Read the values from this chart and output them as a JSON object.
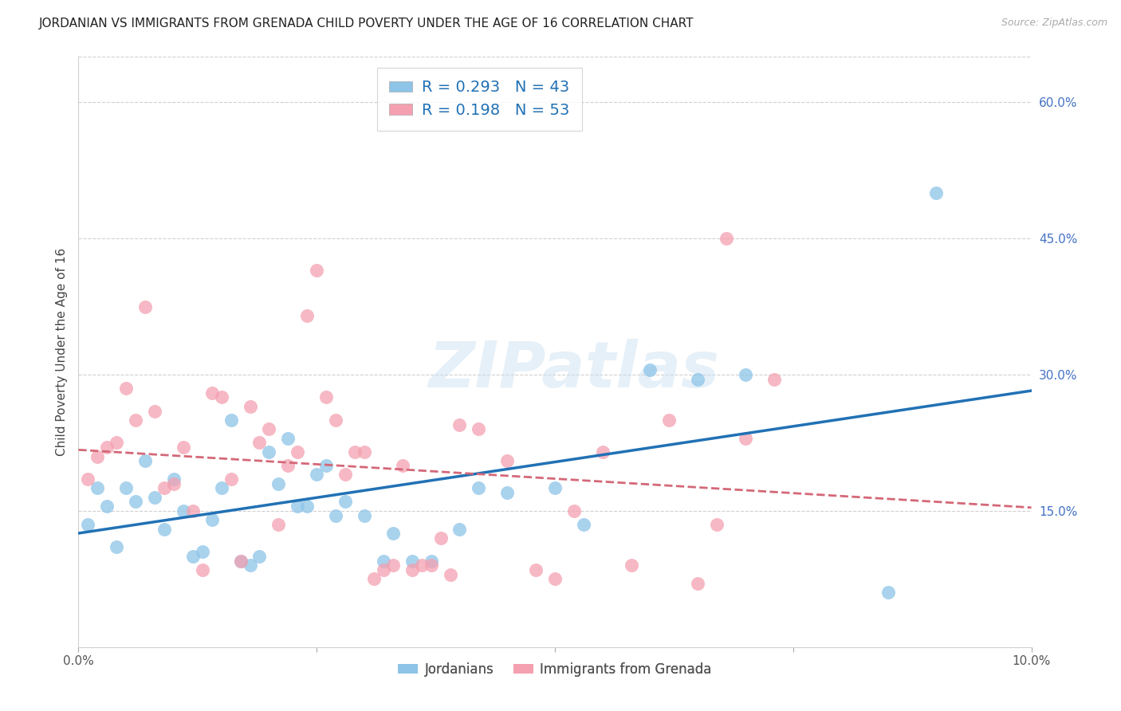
{
  "title": "JORDANIAN VS IMMIGRANTS FROM GRENADA CHILD POVERTY UNDER THE AGE OF 16 CORRELATION CHART",
  "source": "Source: ZipAtlas.com",
  "ylabel": "Child Poverty Under the Age of 16",
  "xlim": [
    0.0,
    0.1
  ],
  "ylim": [
    0.0,
    0.65
  ],
  "y_tick_right": [
    0.15,
    0.3,
    0.45,
    0.6
  ],
  "y_tick_right_labels": [
    "15.0%",
    "30.0%",
    "45.0%",
    "60.0%"
  ],
  "jordanians_x": [
    0.001,
    0.002,
    0.003,
    0.004,
    0.005,
    0.006,
    0.007,
    0.008,
    0.009,
    0.01,
    0.011,
    0.012,
    0.013,
    0.014,
    0.015,
    0.016,
    0.017,
    0.018,
    0.019,
    0.02,
    0.021,
    0.022,
    0.023,
    0.024,
    0.025,
    0.026,
    0.027,
    0.028,
    0.03,
    0.032,
    0.033,
    0.035,
    0.037,
    0.04,
    0.042,
    0.045,
    0.05,
    0.053,
    0.06,
    0.065,
    0.07,
    0.085,
    0.09
  ],
  "jordanians_y": [
    0.135,
    0.175,
    0.155,
    0.11,
    0.175,
    0.16,
    0.205,
    0.165,
    0.13,
    0.185,
    0.15,
    0.1,
    0.105,
    0.14,
    0.175,
    0.25,
    0.095,
    0.09,
    0.1,
    0.215,
    0.18,
    0.23,
    0.155,
    0.155,
    0.19,
    0.2,
    0.145,
    0.16,
    0.145,
    0.095,
    0.125,
    0.095,
    0.095,
    0.13,
    0.175,
    0.17,
    0.175,
    0.135,
    0.305,
    0.295,
    0.3,
    0.06,
    0.5
  ],
  "grenada_x": [
    0.001,
    0.002,
    0.003,
    0.004,
    0.005,
    0.006,
    0.007,
    0.008,
    0.009,
    0.01,
    0.011,
    0.012,
    0.013,
    0.014,
    0.015,
    0.016,
    0.017,
    0.018,
    0.019,
    0.02,
    0.021,
    0.022,
    0.023,
    0.024,
    0.025,
    0.026,
    0.027,
    0.028,
    0.029,
    0.03,
    0.031,
    0.032,
    0.033,
    0.034,
    0.035,
    0.036,
    0.037,
    0.038,
    0.039,
    0.04,
    0.042,
    0.045,
    0.048,
    0.05,
    0.052,
    0.055,
    0.058,
    0.062,
    0.065,
    0.067,
    0.068,
    0.07,
    0.073
  ],
  "grenada_y": [
    0.185,
    0.21,
    0.22,
    0.225,
    0.285,
    0.25,
    0.375,
    0.26,
    0.175,
    0.18,
    0.22,
    0.15,
    0.085,
    0.28,
    0.275,
    0.185,
    0.095,
    0.265,
    0.225,
    0.24,
    0.135,
    0.2,
    0.215,
    0.365,
    0.415,
    0.275,
    0.25,
    0.19,
    0.215,
    0.215,
    0.075,
    0.085,
    0.09,
    0.2,
    0.085,
    0.09,
    0.09,
    0.12,
    0.08,
    0.245,
    0.24,
    0.205,
    0.085,
    0.075,
    0.15,
    0.215,
    0.09,
    0.25,
    0.07,
    0.135,
    0.45,
    0.23,
    0.295
  ],
  "jordanian_scatter_color": "#8dc4e8",
  "grenada_scatter_color": "#f4a0b0",
  "jordanian_line_color": "#2171b5",
  "grenada_line_color": "#d46878",
  "legend_text_color": "#555555",
  "legend_value_color": "#2171b5",
  "background_color": "#ffffff",
  "grid_color": "#d0d0d0",
  "title_fontsize": 11,
  "axis_label_fontsize": 11,
  "tick_fontsize": 11,
  "legend_fontsize": 14,
  "right_tick_color": "#4472c4"
}
